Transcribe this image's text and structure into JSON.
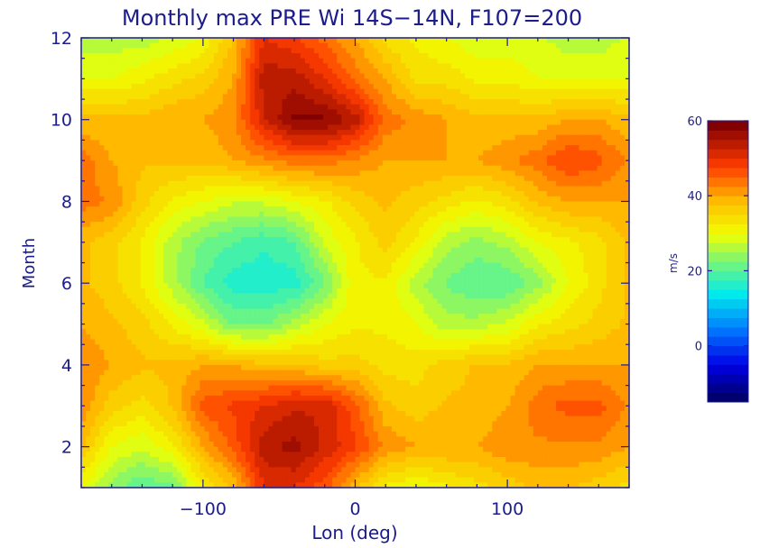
{
  "chart_data": {
    "type": "heatmap",
    "title": "Monthly max PRE Wi 14S−14N, F107=200",
    "xlabel": "Lon (deg)",
    "ylabel": "Month",
    "xlim": [
      -180,
      180
    ],
    "ylim": [
      1,
      12
    ],
    "x_ticks": [
      "−100",
      "0",
      "100"
    ],
    "x_tick_values": [
      -100,
      0,
      100
    ],
    "y_ticks": [
      "2",
      "4",
      "6",
      "8",
      "10",
      "12"
    ],
    "y_tick_values": [
      2,
      4,
      6,
      8,
      10,
      12
    ],
    "colorbar": {
      "label": "m/s",
      "range": [
        -15,
        60
      ],
      "ticks": [
        "0",
        "20",
        "40",
        "60"
      ],
      "tick_values": [
        0,
        20,
        40,
        60
      ],
      "levels": 30,
      "colormap": "rainbow"
    },
    "x": [
      -180,
      -160,
      -140,
      -120,
      -100,
      -80,
      -60,
      -40,
      -20,
      0,
      20,
      40,
      60,
      80,
      100,
      120,
      140,
      160,
      180
    ],
    "y": [
      1,
      2,
      3,
      4,
      5,
      6,
      7,
      8,
      9,
      10,
      11,
      12
    ],
    "z": [
      [
        30,
        24,
        20,
        22,
        32,
        38,
        50,
        50,
        46,
        38,
        32,
        30,
        32,
        34,
        36,
        38,
        38,
        36,
        34
      ],
      [
        38,
        30,
        28,
        32,
        40,
        46,
        54,
        56,
        52,
        48,
        42,
        40,
        40,
        40,
        42,
        42,
        42,
        42,
        40
      ],
      [
        42,
        36,
        34,
        38,
        46,
        48,
        50,
        52,
        52,
        46,
        38,
        36,
        38,
        38,
        40,
        44,
        46,
        46,
        42
      ],
      [
        42,
        40,
        38,
        38,
        40,
        40,
        38,
        38,
        36,
        36,
        34,
        34,
        36,
        38,
        38,
        40,
        40,
        40,
        40
      ],
      [
        40,
        38,
        36,
        32,
        28,
        22,
        22,
        26,
        30,
        32,
        32,
        30,
        26,
        26,
        28,
        32,
        34,
        36,
        38
      ],
      [
        38,
        36,
        32,
        26,
        20,
        16,
        16,
        16,
        22,
        32,
        32,
        26,
        22,
        20,
        20,
        24,
        30,
        34,
        38
      ],
      [
        38,
        36,
        32,
        26,
        22,
        20,
        18,
        20,
        28,
        32,
        36,
        32,
        26,
        24,
        26,
        30,
        32,
        34,
        38
      ],
      [
        44,
        42,
        36,
        32,
        30,
        28,
        28,
        30,
        32,
        36,
        38,
        36,
        34,
        32,
        34,
        38,
        40,
        40,
        40
      ],
      [
        44,
        40,
        38,
        38,
        38,
        40,
        42,
        44,
        44,
        42,
        40,
        40,
        40,
        40,
        42,
        44,
        48,
        46,
        42
      ],
      [
        38,
        38,
        38,
        40,
        40,
        42,
        52,
        58,
        58,
        54,
        44,
        42,
        40,
        38,
        38,
        38,
        40,
        40,
        38
      ],
      [
        30,
        30,
        32,
        34,
        36,
        40,
        54,
        54,
        50,
        44,
        40,
        34,
        34,
        32,
        32,
        30,
        30,
        30,
        30
      ],
      [
        26,
        26,
        26,
        28,
        30,
        38,
        50,
        48,
        44,
        40,
        34,
        32,
        30,
        28,
        28,
        28,
        26,
        26,
        28
      ]
    ]
  }
}
